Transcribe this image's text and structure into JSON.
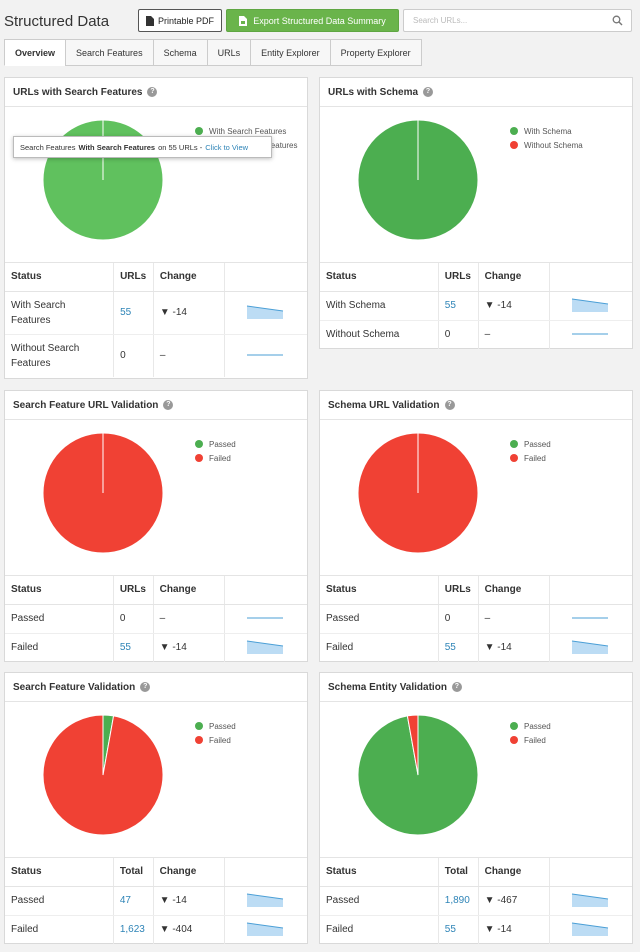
{
  "header": {
    "title": "Structured Data",
    "pdf_button": "Printable PDF",
    "export_button": "Export Structured Data Summary",
    "search_placeholder": "Search URLs..."
  },
  "tabs": [
    {
      "label": "Overview",
      "active": true
    },
    {
      "label": "Search Features"
    },
    {
      "label": "Schema"
    },
    {
      "label": "URLs"
    },
    {
      "label": "Entity Explorer"
    },
    {
      "label": "Property Explorer"
    }
  ],
  "colors": {
    "green": "#4cae50",
    "green_light": "#60c15e",
    "red": "#f04134",
    "link": "#2e84b7",
    "spark_fill": "#bcdcf4",
    "spark_line": "#4b9fd6"
  },
  "tooltip": {
    "prefix": "Search Features",
    "bold": "With Search Features",
    "middle": "on 55 URLs -",
    "link": "Click to View"
  },
  "panels": [
    {
      "title": "URLs with Search Features",
      "legend": [
        "With Search Features",
        "Without Search Features"
      ],
      "legend_visible_second": "eatures",
      "headers": [
        "Status",
        "URLs",
        "Change"
      ],
      "rows": [
        {
          "status": "With Search Features",
          "value": "55",
          "change": "▼ -14",
          "trend": "down"
        },
        {
          "status": "Without Search Features",
          "value": "0",
          "change": "–",
          "trend": "flat"
        }
      ],
      "chart_data": {
        "type": "pie",
        "series": [
          {
            "name": "With Search Features",
            "value": 55
          },
          {
            "name": "Without Search Features",
            "value": 0
          }
        ]
      }
    },
    {
      "title": "URLs with Schema",
      "legend": [
        "With Schema",
        "Without Schema"
      ],
      "headers": [
        "Status",
        "URLs",
        "Change"
      ],
      "rows": [
        {
          "status": "With Schema",
          "value": "55",
          "change": "▼ -14",
          "trend": "down"
        },
        {
          "status": "Without Schema",
          "value": "0",
          "change": "–",
          "trend": "flat"
        }
      ],
      "chart_data": {
        "type": "pie",
        "series": [
          {
            "name": "With Schema",
            "value": 55
          },
          {
            "name": "Without Schema",
            "value": 0
          }
        ]
      }
    },
    {
      "title": "Search Feature URL Validation",
      "legend": [
        "Passed",
        "Failed"
      ],
      "headers": [
        "Status",
        "URLs",
        "Change"
      ],
      "rows": [
        {
          "status": "Passed",
          "value": "0",
          "change": "–",
          "trend": "flat"
        },
        {
          "status": "Failed",
          "value": "55",
          "change": "▼ -14",
          "trend": "down"
        }
      ],
      "chart_data": {
        "type": "pie",
        "series": [
          {
            "name": "Passed",
            "value": 0
          },
          {
            "name": "Failed",
            "value": 55
          }
        ]
      }
    },
    {
      "title": "Schema URL Validation",
      "legend": [
        "Passed",
        "Failed"
      ],
      "headers": [
        "Status",
        "URLs",
        "Change"
      ],
      "rows": [
        {
          "status": "Passed",
          "value": "0",
          "change": "–",
          "trend": "flat"
        },
        {
          "status": "Failed",
          "value": "55",
          "change": "▼ -14",
          "trend": "down"
        }
      ],
      "chart_data": {
        "type": "pie",
        "series": [
          {
            "name": "Passed",
            "value": 0
          },
          {
            "name": "Failed",
            "value": 55
          }
        ]
      }
    },
    {
      "title": "Search Feature Validation",
      "legend": [
        "Passed",
        "Failed"
      ],
      "headers": [
        "Status",
        "Total",
        "Change"
      ],
      "rows": [
        {
          "status": "Passed",
          "value": "47",
          "change": "▼ -14",
          "trend": "down"
        },
        {
          "status": "Failed",
          "value": "1,623",
          "change": "▼ -404",
          "trend": "down"
        }
      ],
      "chart_data": {
        "type": "pie",
        "series": [
          {
            "name": "Passed",
            "value": 47
          },
          {
            "name": "Failed",
            "value": 1623
          }
        ]
      }
    },
    {
      "title": "Schema Entity Validation",
      "legend": [
        "Passed",
        "Failed"
      ],
      "headers": [
        "Status",
        "Total",
        "Change"
      ],
      "rows": [
        {
          "status": "Passed",
          "value": "1,890",
          "change": "▼ -467",
          "trend": "down"
        },
        {
          "status": "Failed",
          "value": "55",
          "change": "▼ -14",
          "trend": "down"
        }
      ],
      "chart_data": {
        "type": "pie",
        "series": [
          {
            "name": "Passed",
            "value": 1890
          },
          {
            "name": "Failed",
            "value": 55
          }
        ]
      }
    }
  ]
}
